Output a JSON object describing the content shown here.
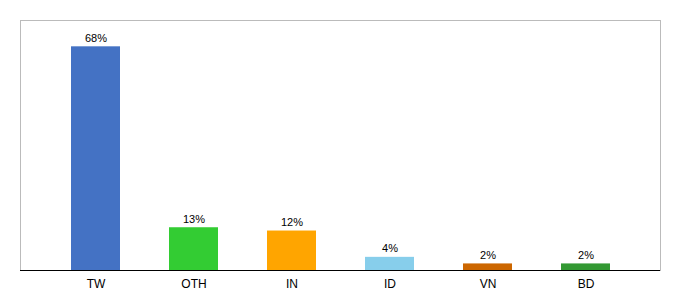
{
  "chart_data": {
    "type": "bar",
    "categories": [
      "TW",
      "OTH",
      "IN",
      "ID",
      "VN",
      "BD"
    ],
    "values": [
      68,
      13,
      12,
      4,
      2,
      2
    ],
    "value_labels": [
      "68%",
      "13%",
      "12%",
      "4%",
      "2%",
      "2%"
    ],
    "colors": [
      "#4472C4",
      "#33CC33",
      "#FFA500",
      "#87CEEB",
      "#CC6600",
      "#339933"
    ],
    "ylim": [
      0,
      76
    ],
    "data_labels": true,
    "tick_labels": "x"
  }
}
